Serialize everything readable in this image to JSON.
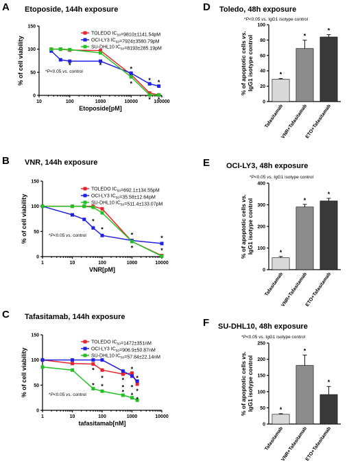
{
  "chart_data": [
    {
      "id": "A",
      "type": "line",
      "letter": "A",
      "title": "Etoposide, 144h exposure",
      "xlabel": "Etoposide[pM]",
      "ylabel": "% of cell viability",
      "xscale": "log",
      "xlim": [
        10,
        100000
      ],
      "xticks": [
        10,
        100,
        1000,
        10000,
        100000
      ],
      "xtick_labels": [
        "10",
        "100",
        "1000",
        "10000",
        "100000"
      ],
      "ylim": [
        0,
        150
      ],
      "yticks": [
        0,
        50,
        100,
        150
      ],
      "note": "*P<0.05 vs. control",
      "legend_position": "top-right",
      "series": [
        {
          "name": "TOLEDO IC50=9810±1141.54pM",
          "color": "#e8222a",
          "x": [
            25,
            50,
            100,
            1000,
            10000,
            40000,
            80000
          ],
          "y": [
            100,
            100,
            98,
            97,
            45,
            5,
            1
          ]
        },
        {
          "name": "OCI-LY3 IC50=7924±3580.79pM",
          "color": "#2020e0",
          "x": [
            25,
            50,
            100,
            1000,
            10000,
            40000,
            80000
          ],
          "y": [
            96,
            77,
            74,
            74,
            48,
            25,
            20
          ]
        },
        {
          "name": "SU-DHL10 IC50=8193±285.19pM",
          "color": "#22c022",
          "x": [
            25,
            50,
            100,
            1000,
            10000,
            40000,
            80000
          ],
          "y": [
            100,
            100,
            99,
            92,
            40,
            1,
            1
          ]
        }
      ],
      "stars": [
        {
          "x": 100,
          "y": 65
        },
        {
          "x": 1000,
          "y": 65
        },
        {
          "x": 10000,
          "y": 57
        },
        {
          "x": 10000,
          "y": 25
        },
        {
          "x": 40000,
          "y": 33
        },
        {
          "x": 80000,
          "y": 28
        },
        {
          "x": 40000,
          "y": -9
        },
        {
          "x": 80000,
          "y": -9
        }
      ]
    },
    {
      "id": "B",
      "type": "line",
      "letter": "B",
      "title": "VNR, 144h exposure",
      "xlabel": "VNR[pM]",
      "ylabel": "% of cell viability",
      "xscale": "log",
      "xlim": [
        1,
        10000
      ],
      "xticks": [
        1,
        10,
        100,
        1000,
        10000
      ],
      "xtick_labels": [
        "1",
        "10",
        "100",
        "1000",
        "10000"
      ],
      "ylim": [
        0,
        150
      ],
      "yticks": [
        0,
        50,
        100,
        150
      ],
      "note": "*P<0.05 vs. control",
      "legend_position": "top-right",
      "series": [
        {
          "name": "TOLEDO IC50=692.1±134.55pM",
          "color": "#e8222a",
          "x": [
            1,
            10,
            25,
            50,
            100,
            1000,
            10000
          ],
          "y": [
            100,
            100,
            100,
            100,
            95,
            30,
            2
          ]
        },
        {
          "name": "OCI-LY3 IC50=35.58±12.64pM",
          "color": "#2020e0",
          "x": [
            1,
            10,
            25,
            50,
            100,
            1000,
            10000
          ],
          "y": [
            100,
            83,
            74,
            57,
            42,
            32,
            26
          ]
        },
        {
          "name": "SU-DHL10 IC50=511.4±133.07pM",
          "color": "#22c022",
          "x": [
            1,
            10,
            25,
            50,
            100,
            1000,
            10000
          ],
          "y": [
            100,
            100,
            100,
            98,
            87,
            30,
            1
          ]
        }
      ],
      "stars": [
        {
          "x": 50,
          "y": 70
        },
        {
          "x": 100,
          "y": 54
        },
        {
          "x": 1000,
          "y": 43
        },
        {
          "x": 1000,
          "y": 17
        },
        {
          "x": 10000,
          "y": 37
        },
        {
          "x": 10000,
          "y": 12
        }
      ]
    },
    {
      "id": "C",
      "type": "line",
      "letter": "C",
      "title": "Tafasitamab, 144h exposure",
      "xlabel": "tafasitamab[nM]",
      "ylabel": "% of cell viability",
      "xscale": "log",
      "xlim": [
        1,
        10000
      ],
      "xticks": [
        1,
        10,
        100,
        1000,
        10000
      ],
      "xtick_labels": [
        "1",
        "10",
        "100",
        "1000",
        "10000"
      ],
      "ylim": [
        0,
        150
      ],
      "yticks": [
        0,
        50,
        100,
        150
      ],
      "note": "*P<0.05 vs. control",
      "legend_position": "top-right",
      "series": [
        {
          "name": "TOLEDO IC50=1472±351nM",
          "color": "#e8222a",
          "x": [
            1,
            10,
            50,
            100,
            500,
            1000,
            1500
          ],
          "y": [
            100,
            93,
            92,
            80,
            72,
            74,
            52
          ]
        },
        {
          "name": "OCI-LY3 IC50=906.9±50.87nM",
          "color": "#2020e0",
          "x": [
            1,
            10,
            50,
            100,
            500,
            1000,
            1500
          ],
          "y": [
            100,
            100,
            100,
            100,
            78,
            68,
            58
          ]
        },
        {
          "name": "SU-DHL10 IC50=57.84±22.14nM",
          "color": "#22c022",
          "x": [
            1,
            10,
            50,
            100,
            500,
            1000,
            1500
          ],
          "y": [
            86,
            80,
            43,
            38,
            30,
            25,
            20
          ]
        }
      ],
      "stars": [
        {
          "x": 50,
          "y": 80
        },
        {
          "x": 100,
          "y": 64
        },
        {
          "x": 500,
          "y": 60
        },
        {
          "x": 1000,
          "y": 82
        },
        {
          "x": 1500,
          "y": 64
        },
        {
          "x": 500,
          "y": 46
        },
        {
          "x": 1000,
          "y": 46
        },
        {
          "x": 1500,
          "y": 38
        },
        {
          "x": 50,
          "y": 50
        },
        {
          "x": 100,
          "y": 48
        },
        {
          "x": 500,
          "y": 36
        },
        {
          "x": 1000,
          "y": 30
        },
        {
          "x": 1500,
          "y": 22
        }
      ]
    },
    {
      "id": "D",
      "type": "bar",
      "letter": "D",
      "title": "Toledo, 48h exposure",
      "ylabel": "% of apoptotic cells vs. IgG1 isotype control",
      "note": "*P<0.05 vs. IgG1 isotype control",
      "ylim": [
        0,
        100
      ],
      "yticks": [
        0,
        20,
        40,
        60,
        80,
        100
      ],
      "categories": [
        "Tafasitamab",
        "VNR+Tafasitamab",
        "ETO+Tafasitamab"
      ],
      "values": [
        29,
        69,
        84
      ],
      "errors": [
        1,
        11,
        3
      ],
      "colors": [
        "#d8d8d8",
        "#8c8c8c",
        "#3a3a3a"
      ],
      "stars": [
        "*",
        "*",
        "*"
      ]
    },
    {
      "id": "E",
      "type": "bar",
      "letter": "E",
      "title": "OCI-LY3, 48h exposure",
      "ylabel": "% of apoptotic cells vs. IgG1 isotype control",
      "note": "*P<0.05 vs. IgG1 isotype control",
      "ylim": [
        0,
        400
      ],
      "yticks": [
        0,
        100,
        200,
        300,
        400
      ],
      "categories": [
        "Tafasitamab",
        "VNR+Tafasitamab",
        "ETO+Tafasitamab"
      ],
      "values": [
        55,
        290,
        318
      ],
      "errors": [
        6,
        12,
        12
      ],
      "colors": [
        "#d8d8d8",
        "#8c8c8c",
        "#3a3a3a"
      ],
      "stars": [
        "*",
        "*",
        "*"
      ]
    },
    {
      "id": "F",
      "type": "bar",
      "letter": "F",
      "title": "SU-DHL10, 48h exposure",
      "ylabel": "% of apoptotic cells vs. IgG1 isotype control",
      "note": "*P<0.05 vs. IgG1 isotype control",
      "ylim": [
        0,
        250
      ],
      "yticks": [
        0,
        50,
        100,
        150,
        200,
        250
      ],
      "categories": [
        "Tafasitamab",
        "VNR+Tafasitamab",
        "ETO+Tafasitamab"
      ],
      "values": [
        30,
        181,
        91
      ],
      "errors": [
        2,
        32,
        25
      ],
      "colors": [
        "#d8d8d8",
        "#8c8c8c",
        "#3a3a3a"
      ],
      "stars": [
        "*",
        "*",
        "*"
      ]
    }
  ]
}
